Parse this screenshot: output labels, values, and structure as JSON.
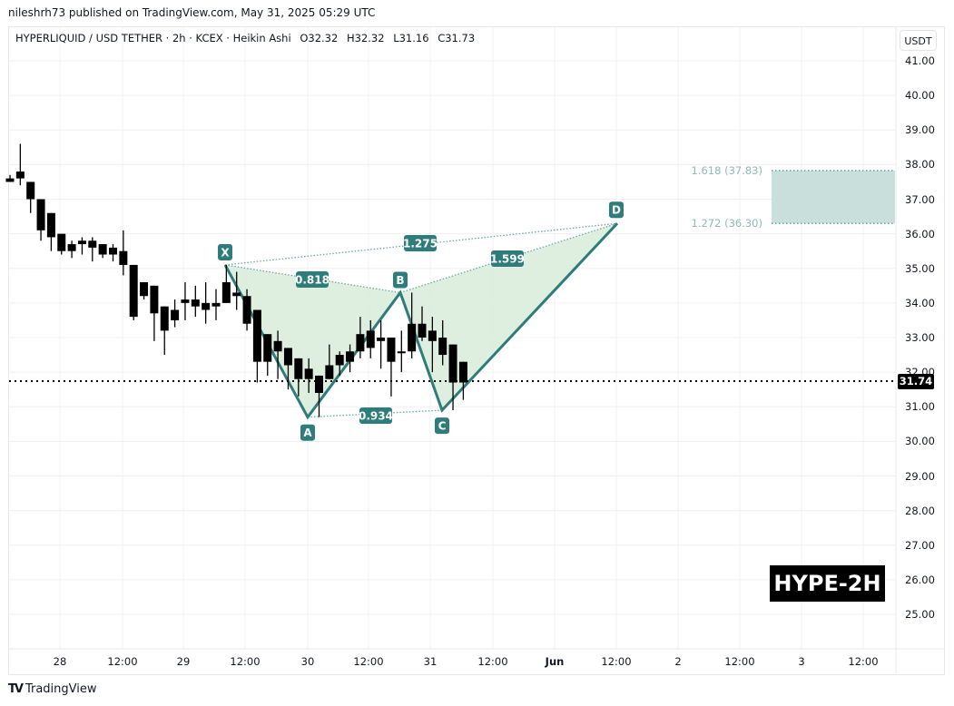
{
  "header": {
    "published": "nileshrh73 published on TradingView.com, May 31, 2025 05:29 UTC"
  },
  "legend": {
    "symbol": "HYPERLIQUID / USD TETHER · 2h · KCEX · Heikin Ashi",
    "open": "O32.32",
    "high": "H32.32",
    "low": "L31.16",
    "close": "C31.73"
  },
  "axis": {
    "currency": "USDT",
    "current_price": "31.74",
    "y_ticks": [
      "41.00",
      "40.00",
      "39.00",
      "38.00",
      "37.00",
      "36.00",
      "35.00",
      "34.00",
      "33.00",
      "32.00",
      "31.00",
      "30.00",
      "29.00",
      "28.00",
      "27.00",
      "26.00",
      "25.00"
    ],
    "x_ticks": [
      "28",
      "12:00",
      "29",
      "12:00",
      "30",
      "12:00",
      "31",
      "12:00",
      "Jun",
      "12:00",
      "2",
      "12:00",
      "3",
      "12:00"
    ]
  },
  "badge": {
    "ticker": "HYPE-2H"
  },
  "brand": {
    "name": "TradingView"
  },
  "pattern": {
    "points": {
      "X": "X",
      "A": "A",
      "B": "B",
      "C": "C",
      "D": "D"
    },
    "ratios": {
      "xb": "0.818",
      "ac": "0.934",
      "bd": "1.599",
      "xd": "1.275"
    },
    "targets": {
      "upper": "1.618 (37.83)",
      "lower": "1.272 (36.30)"
    }
  },
  "colors": {
    "accent": "#2e7d7b",
    "pattern_fill": "#d8ecd9",
    "target_fill": "#c9dfdc",
    "target_text": "#8fb9b4",
    "candle": "#000000"
  },
  "chart_data": {
    "type": "candlestick",
    "title": "HYPERLIQUID / USD TETHER · 2h · KCEX · Heikin Ashi",
    "xlabel": "",
    "ylabel": "USDT",
    "ylim": [
      24.5,
      41.5
    ],
    "grid": true,
    "x_ticks": [
      "28",
      "12:00",
      "29",
      "12:00",
      "30",
      "12:00",
      "31",
      "12:00",
      "Jun",
      "12:00",
      "2",
      "12:00",
      "3",
      "12:00"
    ],
    "candles": [
      {
        "o": 37.6,
        "h": 37.7,
        "l": 37.5,
        "c": 37.5
      },
      {
        "o": 37.8,
        "h": 38.6,
        "l": 37.4,
        "c": 37.6
      },
      {
        "o": 37.5,
        "h": 37.5,
        "l": 36.6,
        "c": 37.0
      },
      {
        "o": 37.0,
        "h": 37.0,
        "l": 35.8,
        "c": 36.1
      },
      {
        "o": 36.6,
        "h": 36.6,
        "l": 35.5,
        "c": 35.9
      },
      {
        "o": 36.0,
        "h": 36.0,
        "l": 35.4,
        "c": 35.5
      },
      {
        "o": 35.7,
        "h": 35.8,
        "l": 35.3,
        "c": 35.5
      },
      {
        "o": 35.8,
        "h": 35.9,
        "l": 35.4,
        "c": 35.7
      },
      {
        "o": 35.8,
        "h": 35.9,
        "l": 35.2,
        "c": 35.6
      },
      {
        "o": 35.7,
        "h": 35.7,
        "l": 35.3,
        "c": 35.4
      },
      {
        "o": 35.6,
        "h": 35.7,
        "l": 35.2,
        "c": 35.4
      },
      {
        "o": 35.5,
        "h": 36.1,
        "l": 34.8,
        "c": 35.1
      },
      {
        "o": 35.1,
        "h": 35.1,
        "l": 33.5,
        "c": 33.6
      },
      {
        "o": 34.6,
        "h": 34.6,
        "l": 34.1,
        "c": 34.2
      },
      {
        "o": 34.5,
        "h": 34.5,
        "l": 32.9,
        "c": 33.7
      },
      {
        "o": 33.9,
        "h": 33.9,
        "l": 32.5,
        "c": 33.2
      },
      {
        "o": 33.8,
        "h": 34.1,
        "l": 33.3,
        "c": 33.5
      },
      {
        "o": 34.1,
        "h": 34.6,
        "l": 33.5,
        "c": 34.0
      },
      {
        "o": 34.1,
        "h": 34.5,
        "l": 33.6,
        "c": 33.9
      },
      {
        "o": 33.8,
        "h": 34.6,
        "l": 33.4,
        "c": 34.0
      },
      {
        "o": 34.0,
        "h": 34.4,
        "l": 33.5,
        "c": 33.9
      },
      {
        "o": 34.6,
        "h": 35.1,
        "l": 34.0,
        "c": 34.0
      },
      {
        "o": 34.3,
        "h": 34.9,
        "l": 33.8,
        "c": 34.2
      },
      {
        "o": 34.2,
        "h": 34.4,
        "l": 33.2,
        "c": 33.4
      },
      {
        "o": 33.8,
        "h": 33.8,
        "l": 31.7,
        "c": 32.3
      },
      {
        "o": 33.1,
        "h": 33.1,
        "l": 31.9,
        "c": 32.3
      },
      {
        "o": 32.9,
        "h": 33.2,
        "l": 31.8,
        "c": 32.6
      },
      {
        "o": 32.7,
        "h": 32.7,
        "l": 31.5,
        "c": 32.2
      },
      {
        "o": 32.4,
        "h": 32.4,
        "l": 31.3,
        "c": 31.8
      },
      {
        "o": 32.1,
        "h": 32.4,
        "l": 31.4,
        "c": 31.8
      },
      {
        "o": 31.9,
        "h": 31.9,
        "l": 30.7,
        "c": 31.4
      },
      {
        "o": 31.8,
        "h": 32.8,
        "l": 31.8,
        "c": 32.2
      },
      {
        "o": 32.2,
        "h": 32.6,
        "l": 31.9,
        "c": 32.5
      },
      {
        "o": 32.3,
        "h": 32.8,
        "l": 32.0,
        "c": 32.6
      },
      {
        "o": 32.6,
        "h": 33.6,
        "l": 32.4,
        "c": 33.1
      },
      {
        "o": 32.7,
        "h": 33.5,
        "l": 32.4,
        "c": 33.2
      },
      {
        "o": 32.9,
        "h": 33.5,
        "l": 32.1,
        "c": 33.0
      },
      {
        "o": 33.0,
        "h": 33.0,
        "l": 31.3,
        "c": 32.3
      },
      {
        "o": 32.6,
        "h": 33.2,
        "l": 32.0,
        "c": 32.6
      },
      {
        "o": 32.6,
        "h": 34.3,
        "l": 32.4,
        "c": 33.4
      },
      {
        "o": 33.4,
        "h": 33.9,
        "l": 32.9,
        "c": 33.0
      },
      {
        "o": 33.2,
        "h": 33.6,
        "l": 32.0,
        "c": 32.9
      },
      {
        "o": 33.0,
        "h": 33.5,
        "l": 32.2,
        "c": 32.5
      },
      {
        "o": 32.8,
        "h": 32.8,
        "l": 30.9,
        "c": 31.7
      },
      {
        "o": 32.3,
        "h": 32.3,
        "l": 31.2,
        "c": 31.7
      }
    ],
    "last_price": 31.74,
    "harmonic_pattern": {
      "X": 35.1,
      "A": 30.7,
      "B": 34.3,
      "C": 30.9,
      "D": 36.3,
      "ratios": {
        "XB": 0.818,
        "AC": 0.934,
        "BD": 1.599,
        "XD": 1.275
      },
      "target_zone": {
        "1.272": 36.3,
        "1.618": 37.83
      }
    }
  }
}
